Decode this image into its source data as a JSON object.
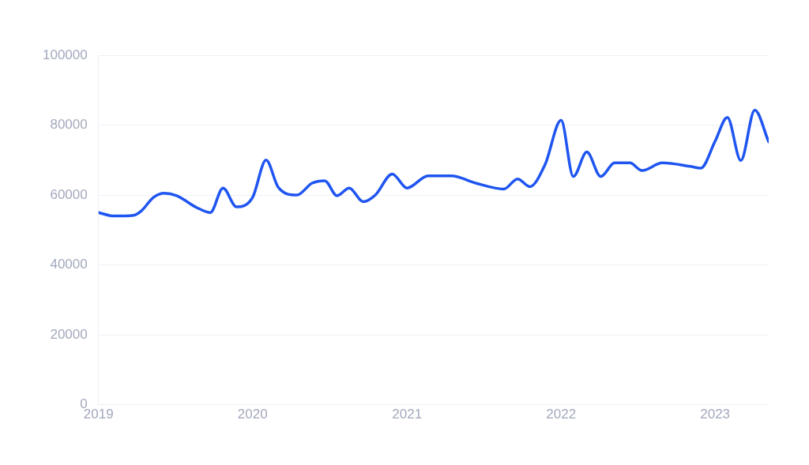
{
  "chart_data": {
    "type": "line",
    "x": [
      "2019-01-01",
      "2019-02-06",
      "2019-03-25",
      "2019-04-12",
      "2019-05-11",
      "2019-06-06",
      "2019-07-05",
      "2019-08-22",
      "2019-09-23",
      "2019-10-23",
      "2019-11-24",
      "2020-01-01",
      "2020-02-02",
      "2020-03-02",
      "2020-04-15",
      "2020-05-21",
      "2020-06-20",
      "2020-07-19",
      "2020-08-17",
      "2020-09-19",
      "2020-10-18",
      "2020-11-27",
      "2021-01-01",
      "2021-02-20",
      "2021-04-16",
      "2021-06-13",
      "2021-08-18",
      "2021-09-20",
      "2021-10-19",
      "2021-11-24",
      "2022-01-01",
      "2022-01-30",
      "2022-03-03",
      "2022-04-05",
      "2022-05-08",
      "2022-06-13",
      "2022-07-12",
      "2022-08-29",
      "2022-11-03",
      "2022-11-28",
      "2023-01-01",
      "2023-01-30",
      "2023-03-03",
      "2023-04-05",
      "2023-05-08"
    ],
    "series": [
      {
        "color": "#1f55f0",
        "values": [
          55000,
          54000,
          54200,
          55400,
          59300,
          60500,
          59800,
          56400,
          55000,
          62000,
          56600,
          59300,
          70000,
          62200,
          60000,
          63400,
          64100,
          59800,
          62000,
          58100,
          60000,
          66000,
          62000,
          65500,
          65500,
          63400,
          61700,
          64600,
          62400,
          68700,
          81400,
          65300,
          72300,
          65300,
          69200,
          69200,
          67000,
          69200,
          68200,
          67700,
          75400,
          82200,
          69900,
          84300,
          75200
        ]
      }
    ],
    "xlim": [
      "2019-01-01",
      "2023-05-08"
    ],
    "xticks": [
      "2019",
      "2020",
      "2021",
      "2022",
      "2023"
    ],
    "ylim": [
      0,
      100000
    ],
    "yticks": [
      0,
      20000,
      40000,
      60000,
      80000,
      100000
    ],
    "grid": "y",
    "legend": false,
    "marker": "none",
    "line_style": "solid"
  }
}
